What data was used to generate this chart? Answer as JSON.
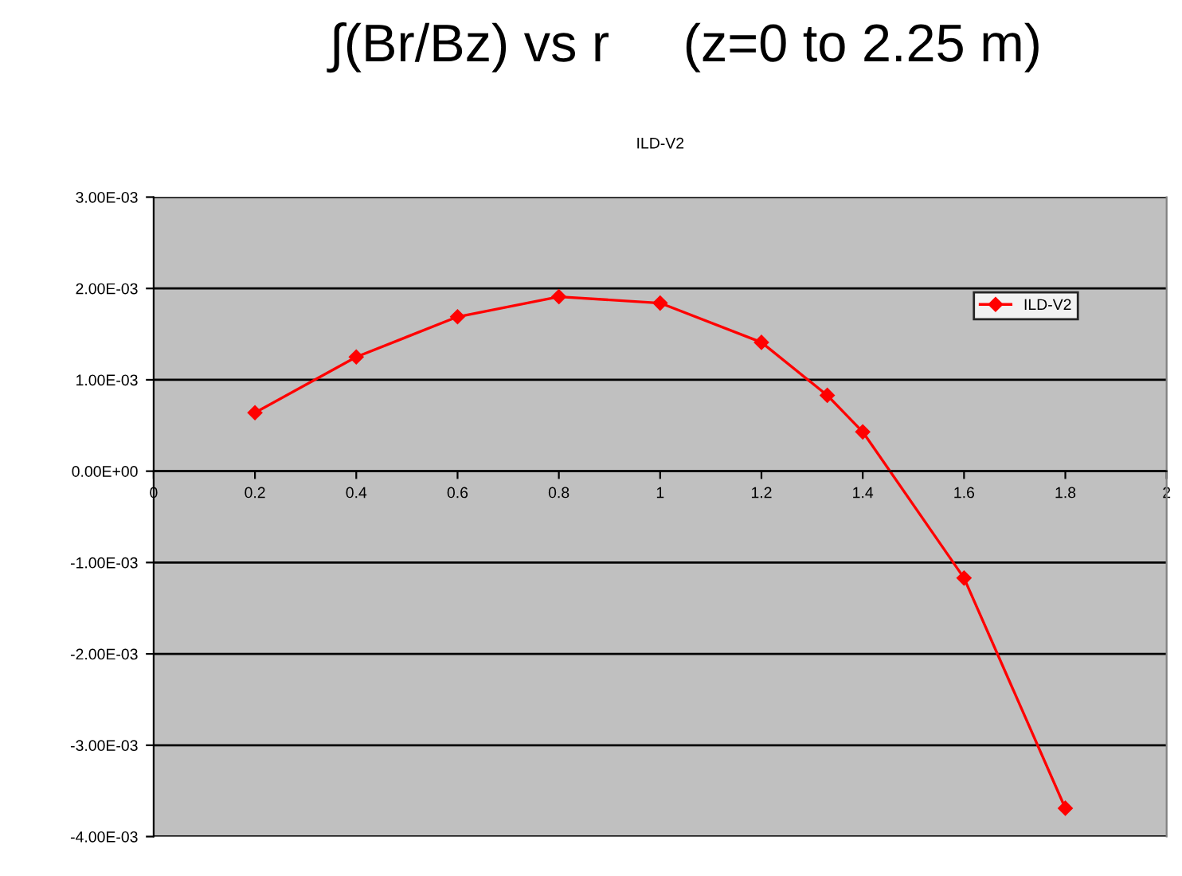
{
  "chart_data": {
    "type": "line",
    "title": "∫(Br/Bz) vs r     (z=0 to 2.25 m)",
    "subtitle": "ILD-V2",
    "x": [
      0.2,
      0.4,
      0.6,
      0.8,
      1.0,
      1.2,
      1.33,
      1.4,
      1.6,
      1.8
    ],
    "series": [
      {
        "name": "ILD-V2",
        "color": "#ff0000",
        "values": [
          0.00064,
          0.00125,
          0.00169,
          0.00191,
          0.00184,
          0.00141,
          0.00083,
          0.00043,
          -0.00117,
          -0.00369
        ]
      }
    ],
    "xlim": [
      0,
      2
    ],
    "xticks": [
      0,
      0.2,
      0.4,
      0.6,
      0.8,
      1,
      1.2,
      1.4,
      1.6,
      1.8,
      2
    ],
    "ylim": [
      -0.004,
      0.003
    ],
    "yticks": [
      {
        "value": -0.004,
        "label": "-4.00E-03"
      },
      {
        "value": -0.003,
        "label": "-3.00E-03"
      },
      {
        "value": -0.002,
        "label": "-2.00E-03"
      },
      {
        "value": -0.001,
        "label": "-1.00E-03"
      },
      {
        "value": 0,
        "label": "0.00E+00"
      },
      {
        "value": 0.001,
        "label": "1.00E-03"
      },
      {
        "value": 0.002,
        "label": "2.00E-03"
      },
      {
        "value": 0.003,
        "label": "3.00E-03"
      }
    ],
    "grid": "y",
    "legend": "right",
    "marker": "diamond",
    "line_style": "solid"
  }
}
